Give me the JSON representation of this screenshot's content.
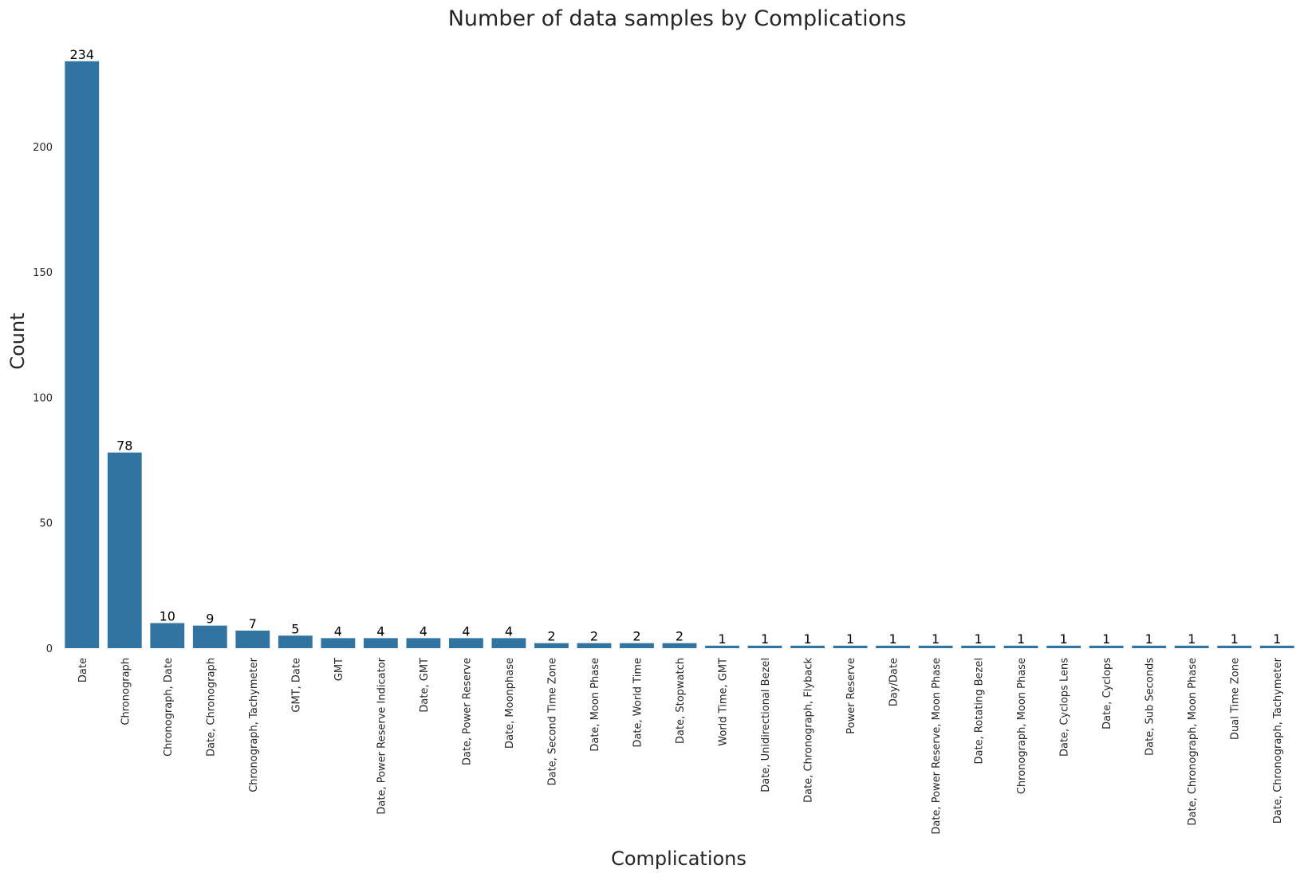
{
  "chart_data": {
    "type": "bar",
    "title": "Number of data samples by Complications",
    "xlabel": "Complications",
    "ylabel": "Count",
    "categories": [
      "Date",
      "Chronograph",
      "Chronograph, Date",
      "Date, Chronograph",
      "Chronograph, Tachymeter",
      "GMT, Date",
      "GMT",
      "Date, Power Reserve Indicator",
      "Date, GMT",
      "Date, Power Reserve",
      "Date, Moonphase",
      "Date, Second Time Zone",
      "Date, Moon Phase",
      "Date, World Time",
      "Date, Stopwatch",
      "World Time, GMT",
      "Date, Unidirectional Bezel",
      "Date, Chronograph, Flyback",
      "Power Reserve",
      "Day/Date",
      "Date, Power Reserve, Moon Phase",
      "Date, Rotating Bezel",
      "Chronograph, Moon Phase",
      "Date, Cyclops Lens",
      "Date, Cyclops",
      "Date, Sub Seconds",
      "Date, Chronograph, Moon Phase",
      "Dual Time Zone",
      "Date, Chronograph, Tachymeter"
    ],
    "values": [
      234,
      78,
      10,
      9,
      7,
      5,
      4,
      4,
      4,
      4,
      4,
      2,
      2,
      2,
      2,
      1,
      1,
      1,
      1,
      1,
      1,
      1,
      1,
      1,
      1,
      1,
      1,
      1,
      1
    ],
    "data_labels": [
      "234",
      "78",
      "10",
      "9",
      "7",
      "5",
      "4",
      "4",
      "4",
      "4",
      "4",
      "2",
      "2",
      "2",
      "2",
      "1",
      "1",
      "1",
      "1",
      "1",
      "1",
      "1",
      "1",
      "1",
      "1",
      "1",
      "1",
      "1",
      "1"
    ],
    "yticks": [
      0,
      50,
      100,
      150,
      200
    ],
    "ytick_labels": [
      "0",
      "50",
      "100",
      "150",
      "200"
    ],
    "ylim": [
      0,
      245.7
    ],
    "grid": false,
    "bar_color": "#3274a1"
  }
}
